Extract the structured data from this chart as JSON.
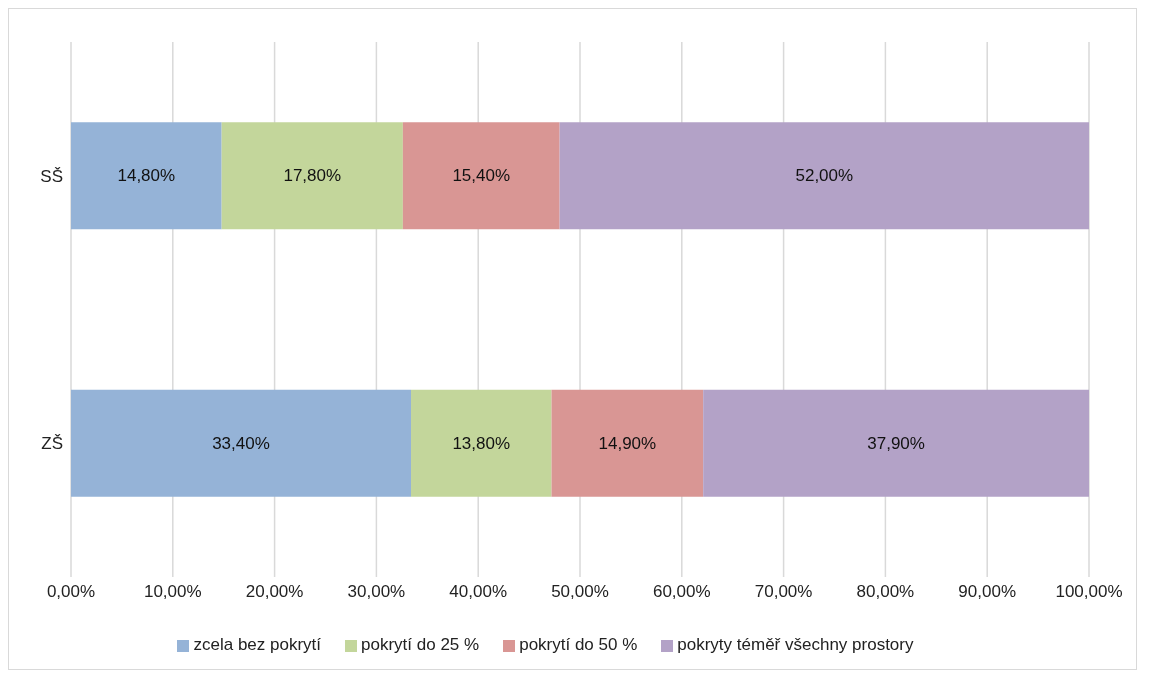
{
  "chart_data": {
    "type": "bar",
    "orientation": "horizontal",
    "stacked": true,
    "categories": [
      "SŠ",
      "ZŠ"
    ],
    "series": [
      {
        "name": "zcela bez pokrytí",
        "color": "#95b3d7",
        "values": [
          14.8,
          33.4
        ],
        "value_labels": [
          "14,80%",
          "33,40%"
        ]
      },
      {
        "name": "pokrytí do 25 %",
        "color": "#c3d69b",
        "values": [
          17.8,
          13.8
        ],
        "value_labels": [
          "17,80%",
          "13,80%"
        ]
      },
      {
        "name": "pokrytí do 50 %",
        "color": "#d99694",
        "values": [
          15.4,
          14.9
        ],
        "value_labels": [
          "15,40%",
          "14,90%"
        ]
      },
      {
        "name": "pokryty téměř všechny prostory",
        "color": "#b3a2c7",
        "values": [
          52.0,
          37.9
        ],
        "value_labels": [
          "52,00%",
          "37,90%"
        ]
      }
    ],
    "xlim": [
      0,
      100
    ],
    "xticks": [
      {
        "value": 0,
        "label": "0,00%"
      },
      {
        "value": 10,
        "label": "10,00%"
      },
      {
        "value": 20,
        "label": "20,00%"
      },
      {
        "value": 30,
        "label": "30,00%"
      },
      {
        "value": 40,
        "label": "40,00%"
      },
      {
        "value": 50,
        "label": "50,00%"
      },
      {
        "value": 60,
        "label": "60,00%"
      },
      {
        "value": 70,
        "label": "70,00%"
      },
      {
        "value": 80,
        "label": "80,00%"
      },
      {
        "value": 90,
        "label": "90,00%"
      },
      {
        "value": 100,
        "label": "100,00%"
      }
    ],
    "grid": "x",
    "legend": "bottom"
  }
}
